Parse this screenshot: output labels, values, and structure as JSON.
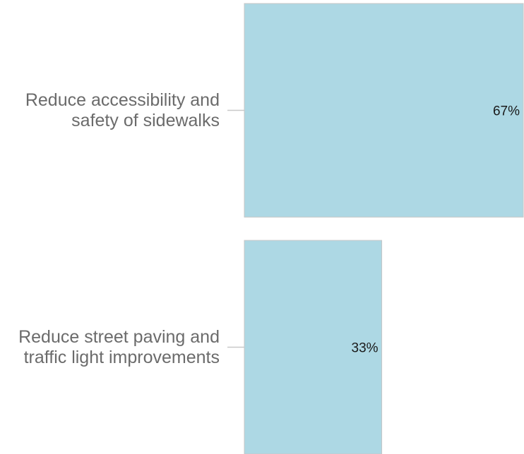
{
  "chart_data": {
    "type": "bar",
    "orientation": "horizontal",
    "categories": [
      [
        "Reduce accessibility and",
        "safety of sidewalks"
      ],
      [
        "Reduce street paving and",
        "traffic light improvements"
      ]
    ],
    "values": [
      67,
      33
    ],
    "value_labels": [
      "67%",
      "33%"
    ],
    "unit": "%",
    "xlim": [
      0,
      67
    ],
    "colors": {
      "bar": "#add8e4",
      "bar_edge": "#c6c6c6",
      "label": "#6b6b6b",
      "value": "#1a1a1a"
    },
    "grid": false,
    "legend": "none",
    "title": "",
    "xlabel": "",
    "ylabel": ""
  }
}
